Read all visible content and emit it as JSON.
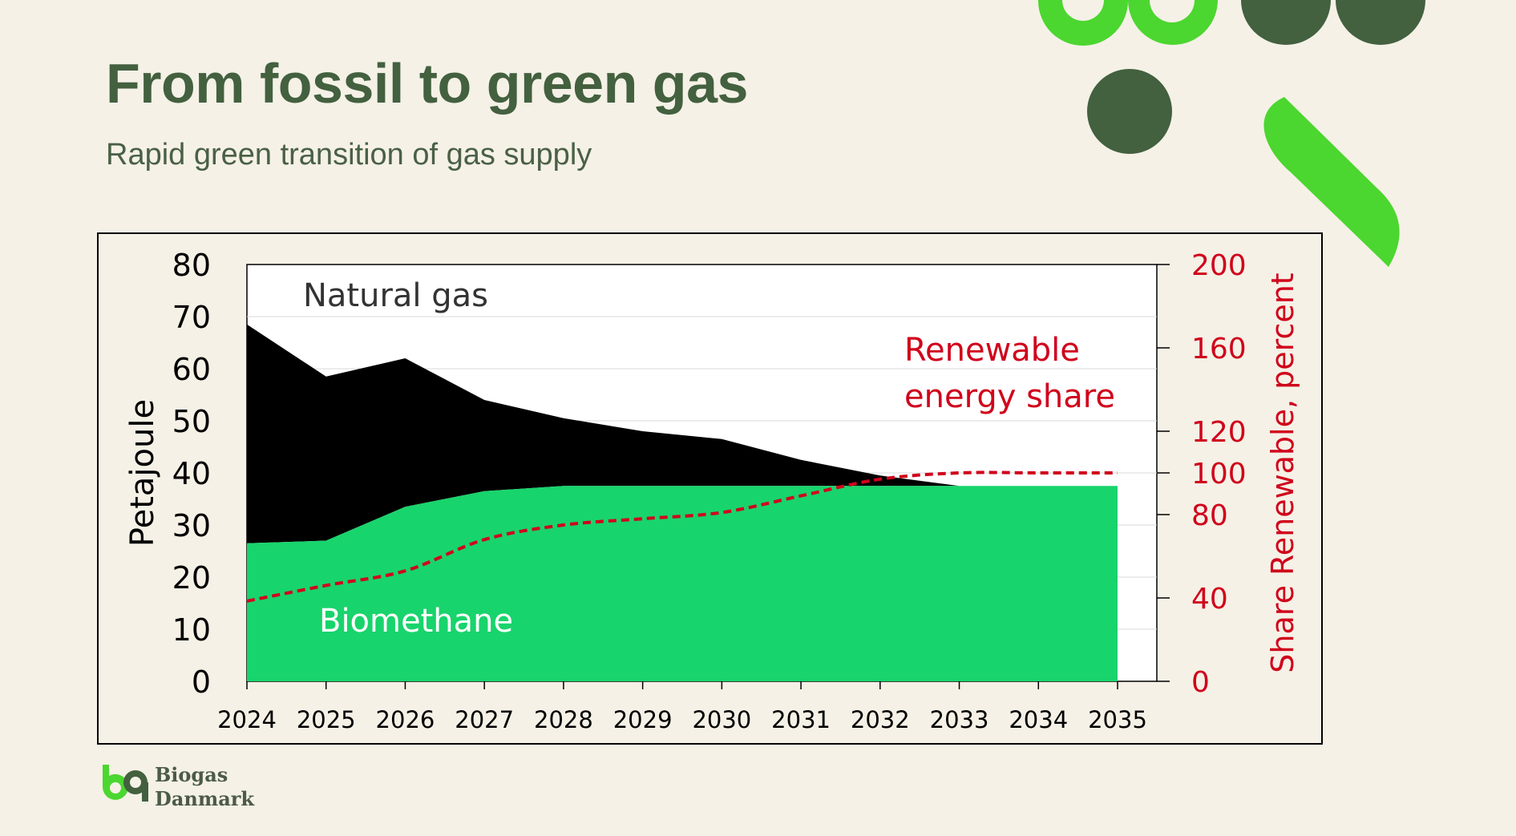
{
  "header": {
    "title": "From fossil to green gas",
    "subtitle": "Rapid green transition of gas supply"
  },
  "brand": {
    "name_line1": "Biogas",
    "name_line2": "Danmark"
  },
  "colors": {
    "background": "#f5f1e6",
    "title": "#43603f",
    "dark_green": "#43603f",
    "bright_green": "#4cd630",
    "biomethane": "#18d46c",
    "natural_gas": "#000000",
    "renewable_line": "#d0021b"
  },
  "chart_data": {
    "type": "area",
    "x": [
      2024,
      2025,
      2026,
      2027,
      2028,
      2029,
      2030,
      2031,
      2032,
      2033,
      2034,
      2035
    ],
    "series": [
      {
        "name": "Biomethane",
        "kind": "stacked-area",
        "axis": "left",
        "values": [
          26.5,
          27,
          33.5,
          36.5,
          37.5,
          37.5,
          37.5,
          37.5,
          37.5,
          37.5,
          37.5,
          37.5
        ]
      },
      {
        "name": "Natural gas",
        "kind": "stacked-area",
        "axis": "left",
        "values": [
          42,
          31.5,
          28.5,
          17.5,
          13,
          10.5,
          9,
          5,
          2,
          0,
          0,
          0
        ]
      },
      {
        "name": "Renewable energy share",
        "kind": "dashed-line",
        "axis": "right",
        "values": [
          38.5,
          46,
          53,
          68,
          75,
          78,
          81,
          89,
          97,
          100,
          100,
          100
        ]
      }
    ],
    "labels": {
      "natural_gas": "Natural gas",
      "biomethane": "Biomethane",
      "renewable_line1": "Renewable",
      "renewable_line2": "energy share"
    },
    "ylabel": "Petajoule",
    "ylabel_right": "Share Renewable, percent",
    "ylim": [
      0,
      80
    ],
    "ylim_right": [
      0,
      200
    ],
    "yticks": [
      0,
      10,
      20,
      30,
      40,
      50,
      60,
      70,
      80
    ],
    "yticks_right": [
      0,
      40,
      80,
      100,
      120,
      160,
      200
    ],
    "grid": true
  }
}
